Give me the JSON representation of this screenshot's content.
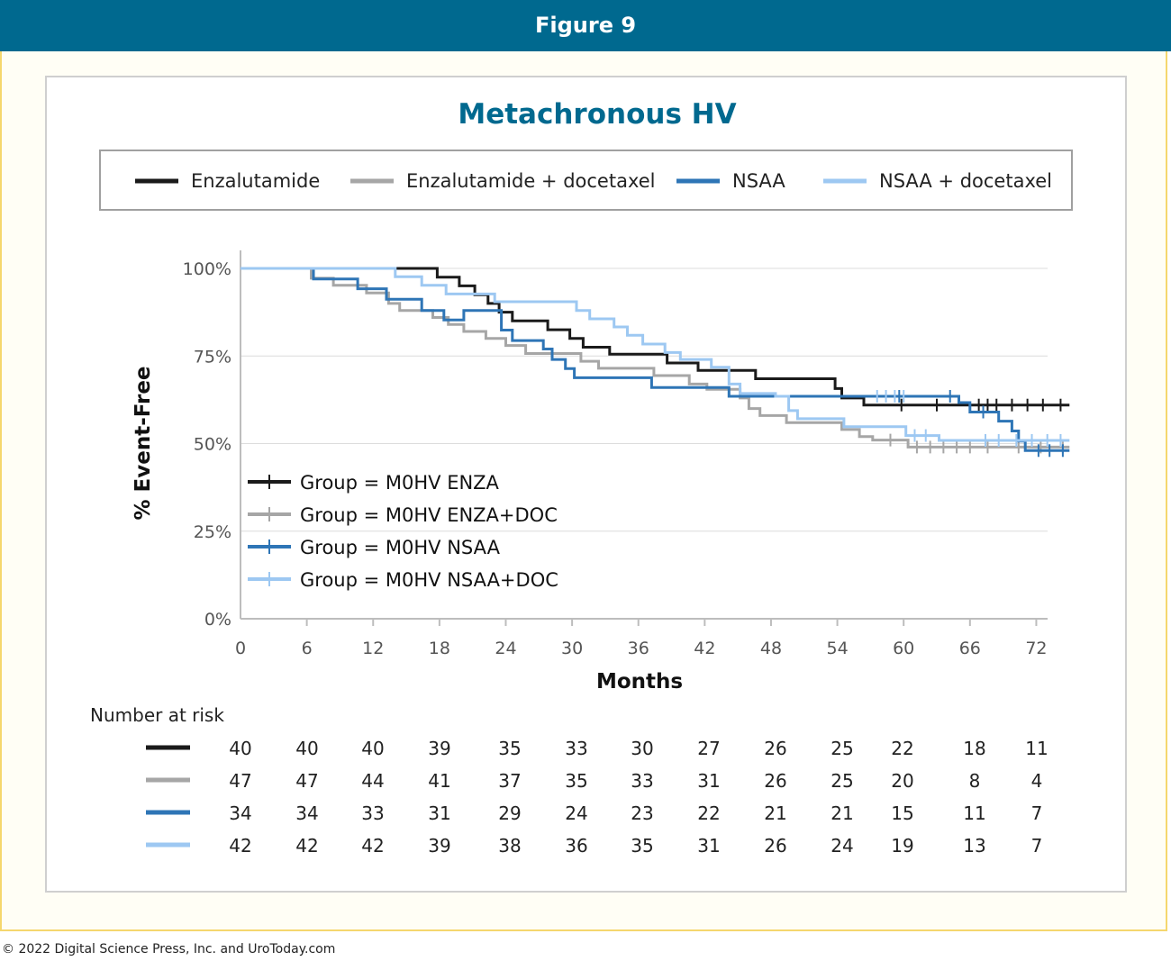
{
  "banner": {
    "title": "Figure 9"
  },
  "footer": {
    "copyright": "© 2022 Digital Science Press, Inc. and UroToday.com"
  },
  "colors": {
    "enza": "#1a1a1a",
    "enza_doc": "#a6a6a6",
    "nsaa": "#2e75b6",
    "nsaa_doc": "#9dc8f2",
    "banner": "#00698f"
  },
  "chart_data": {
    "type": "line",
    "title": "Metachronous HV",
    "xlabel": "Months",
    "ylabel": "% Event-Free",
    "xlim": [
      0,
      75
    ],
    "ylim": [
      0,
      100
    ],
    "x_ticks": [
      "0",
      "6",
      "12",
      "18",
      "24",
      "30",
      "36",
      "42",
      "48",
      "54",
      "60",
      "66",
      "72"
    ],
    "y_ticks": [
      "0%",
      "25%",
      "50%",
      "75%",
      "100%"
    ],
    "top_legend": [
      "Enzalutamide",
      "Enzalutamide + docetaxel",
      "NSAA",
      "NSAA + docetaxel"
    ],
    "inner_legend": [
      "Group = M0HV ENZA",
      "Group = M0HV ENZA+DOC",
      "Group = M0HV NSAA",
      "Group = M0HV NSAA+DOC"
    ],
    "series": [
      {
        "name": "Group = M0HV ENZA",
        "color_key": "enza",
        "points": [
          [
            0,
            100
          ],
          [
            12.2,
            100
          ],
          [
            17.8,
            97.5
          ],
          [
            19.8,
            95
          ],
          [
            21.2,
            92.5
          ],
          [
            22.4,
            90
          ],
          [
            23.4,
            87.5
          ],
          [
            24.6,
            85
          ],
          [
            27.8,
            82.5
          ],
          [
            29.8,
            80
          ],
          [
            31,
            77.5
          ],
          [
            33.4,
            75.5
          ],
          [
            38.6,
            73
          ],
          [
            41.4,
            70.9
          ],
          [
            46.6,
            68.5
          ],
          [
            53.8,
            65.7
          ],
          [
            54.4,
            63
          ],
          [
            56.4,
            61
          ],
          [
            75,
            61
          ]
        ],
        "censored": [
          [
            59.8,
            61
          ],
          [
            63,
            61
          ],
          [
            66.8,
            61
          ],
          [
            67.6,
            61
          ],
          [
            68.4,
            61
          ],
          [
            69.8,
            61
          ],
          [
            71.2,
            61
          ],
          [
            72.6,
            61
          ],
          [
            74.2,
            61
          ]
        ]
      },
      {
        "name": "Group = M0HV ENZA+DOC",
        "color_key": "enza_doc",
        "points": [
          [
            0,
            100
          ],
          [
            6.4,
            97.2
          ],
          [
            8.4,
            95.2
          ],
          [
            11.4,
            93
          ],
          [
            13.4,
            90
          ],
          [
            14.4,
            88
          ],
          [
            17.4,
            86
          ],
          [
            18.8,
            84
          ],
          [
            20.2,
            82
          ],
          [
            22.2,
            80
          ],
          [
            24,
            78
          ],
          [
            25.8,
            75.7
          ],
          [
            30.8,
            73.5
          ],
          [
            32.4,
            71.5
          ],
          [
            37.4,
            69.4
          ],
          [
            40.6,
            67
          ],
          [
            42.2,
            65.5
          ],
          [
            45.2,
            63
          ],
          [
            46,
            60
          ],
          [
            47,
            58
          ],
          [
            49.4,
            56
          ],
          [
            54.4,
            54
          ],
          [
            56,
            52
          ],
          [
            57.2,
            51
          ],
          [
            60.4,
            49
          ],
          [
            75,
            49
          ]
        ],
        "censored": [
          [
            58.8,
            51
          ],
          [
            61.2,
            49
          ],
          [
            62.4,
            49
          ],
          [
            63.6,
            49
          ],
          [
            64.8,
            49
          ],
          [
            66,
            49
          ],
          [
            67.6,
            49
          ],
          [
            70.4,
            49
          ],
          [
            72.4,
            49
          ],
          [
            74.4,
            49
          ]
        ]
      },
      {
        "name": "Group = M0HV NSAA",
        "color_key": "nsaa",
        "points": [
          [
            0,
            100
          ],
          [
            6.6,
            97
          ],
          [
            10.6,
            94.2
          ],
          [
            13.2,
            91.2
          ],
          [
            16.4,
            88
          ],
          [
            18.4,
            85.3
          ],
          [
            20.2,
            88
          ],
          [
            23.6,
            82.4
          ],
          [
            24.6,
            79.4
          ],
          [
            27.4,
            77
          ],
          [
            28.2,
            74
          ],
          [
            29.4,
            71.4
          ],
          [
            30.2,
            68.8
          ],
          [
            37.2,
            66
          ],
          [
            44.2,
            63.5
          ],
          [
            65,
            61.7
          ],
          [
            66,
            59
          ],
          [
            68.6,
            56.4
          ],
          [
            69.8,
            53.6
          ],
          [
            70.4,
            50.7
          ],
          [
            71,
            48
          ],
          [
            75,
            48
          ]
        ],
        "censored": [
          [
            59.6,
            63.5
          ],
          [
            64.2,
            63.5
          ],
          [
            67.2,
            59
          ],
          [
            72.2,
            48
          ],
          [
            73.2,
            48
          ],
          [
            74.4,
            48
          ]
        ]
      },
      {
        "name": "Group = M0HV NSAA+DOC",
        "color_key": "nsaa_doc",
        "points": [
          [
            0,
            100
          ],
          [
            12.6,
            100
          ],
          [
            14,
            97.6
          ],
          [
            16.4,
            95.2
          ],
          [
            18.6,
            92.7
          ],
          [
            23,
            90.5
          ],
          [
            30.4,
            88
          ],
          [
            31.6,
            85.6
          ],
          [
            33.8,
            83.3
          ],
          [
            35,
            80.9
          ],
          [
            36.4,
            78.4
          ],
          [
            38.4,
            76
          ],
          [
            39.8,
            74
          ],
          [
            42.6,
            71.8
          ],
          [
            44.2,
            67
          ],
          [
            45.2,
            64.3
          ],
          [
            48.4,
            63.5
          ],
          [
            49.6,
            59.4
          ],
          [
            50.4,
            57.1
          ],
          [
            54.6,
            54.8
          ],
          [
            60.2,
            52.3
          ],
          [
            63.2,
            50.9
          ],
          [
            66.6,
            50.9
          ],
          [
            75,
            50.9
          ]
        ],
        "censored": [
          [
            57.6,
            63.5
          ],
          [
            58.4,
            63.5
          ],
          [
            59.2,
            63.5
          ],
          [
            60,
            63.5
          ],
          [
            61,
            52.3
          ],
          [
            62,
            52.3
          ],
          [
            67.4,
            50.9
          ],
          [
            68.6,
            50.9
          ],
          [
            70.2,
            50.9
          ],
          [
            71.6,
            50.9
          ],
          [
            73,
            50.9
          ],
          [
            74.2,
            50.9
          ]
        ]
      }
    ],
    "risk_table": {
      "header": "Number at risk",
      "columns": [
        "0",
        "6",
        "12",
        "18",
        "24",
        "30",
        "36",
        "42",
        "48",
        "54",
        "60",
        "66",
        "72"
      ],
      "rows": [
        {
          "color_key": "enza",
          "values": [
            "40",
            "40",
            "40",
            "39",
            "35",
            "33",
            "30",
            "27",
            "26",
            "25",
            "22",
            "18",
            "11"
          ]
        },
        {
          "color_key": "enza_doc",
          "values": [
            "47",
            "47",
            "44",
            "41",
            "37",
            "35",
            "33",
            "31",
            "26",
            "25",
            "20",
            "8",
            "4"
          ]
        },
        {
          "color_key": "nsaa",
          "values": [
            "34",
            "34",
            "33",
            "31",
            "29",
            "24",
            "23",
            "22",
            "21",
            "21",
            "15",
            "11",
            "7"
          ]
        },
        {
          "color_key": "nsaa_doc",
          "values": [
            "42",
            "42",
            "42",
            "39",
            "38",
            "36",
            "35",
            "31",
            "26",
            "24",
            "19",
            "13",
            "7"
          ]
        }
      ]
    }
  }
}
